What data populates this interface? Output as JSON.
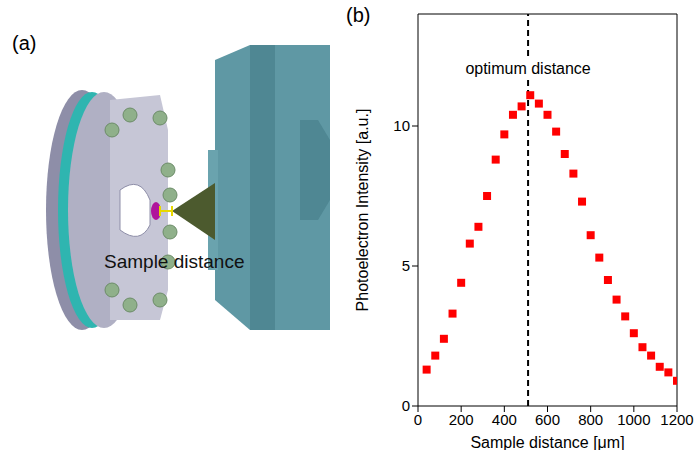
{
  "panels": [
    "(a)",
    "(b)"
  ],
  "diagram": {
    "annotation": "Sample distance"
  },
  "chart_data": {
    "type": "scatter",
    "x_label": "Sample distance [μm]",
    "y_label": "Photoelectron Intensity [a.u.]",
    "x": [
      40,
      80,
      120,
      160,
      200,
      240,
      280,
      320,
      360,
      400,
      440,
      480,
      520,
      560,
      600,
      640,
      680,
      720,
      760,
      800,
      840,
      880,
      920,
      960,
      1000,
      1040,
      1080,
      1120,
      1160,
      1200
    ],
    "values": [
      1.3,
      1.8,
      2.4,
      3.3,
      4.4,
      5.8,
      6.4,
      7.5,
      8.8,
      9.7,
      10.4,
      10.7,
      11.1,
      10.8,
      10.4,
      9.8,
      9.0,
      8.3,
      7.3,
      6.1,
      5.3,
      4.5,
      3.8,
      3.2,
      2.6,
      2.1,
      1.8,
      1.4,
      1.2,
      0.9
    ],
    "color": "#ff0000",
    "marker": "square",
    "xlim": [
      0,
      1200
    ],
    "xticks": [
      0,
      200,
      400,
      600,
      800,
      1000,
      1200
    ],
    "ylim": [
      0,
      14
    ],
    "yticks": [
      0,
      5,
      10
    ],
    "grid": false,
    "annotations": [
      {
        "text": "optimum distance",
        "x": 510,
        "line_style": "dashed"
      }
    ]
  }
}
